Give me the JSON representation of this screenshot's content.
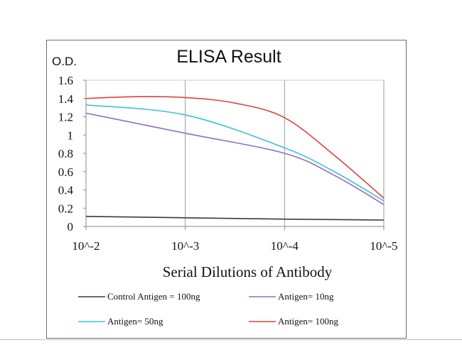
{
  "chart_data": {
    "type": "line",
    "title": "ELISA Result",
    "ylabel": "O.D.",
    "xlabel": "Serial Dilutions of Antibody",
    "categories": [
      "10^-2",
      "10^-3",
      "10^-4",
      "10^-5"
    ],
    "y_ticks": [
      "0",
      "0.2",
      "0.4",
      "0.6",
      "0.8",
      "1",
      "1.2",
      "1.4",
      "1.6"
    ],
    "ylim": [
      0,
      1.6
    ],
    "grid": "vertical",
    "legend_position": "bottom",
    "series": [
      {
        "name": "Control Antigen = 100ng",
        "color": "#3a3a3a",
        "points": [
          [
            0,
            0.11
          ],
          [
            1,
            0.095
          ],
          [
            2,
            0.08
          ],
          [
            3,
            0.07
          ]
        ]
      },
      {
        "name": "Antigen= 10ng",
        "color": "#8e6fbf",
        "points": [
          [
            0,
            1.24
          ],
          [
            1,
            1.02
          ],
          [
            2,
            0.8
          ],
          [
            2.5,
            0.56
          ],
          [
            3,
            0.24
          ]
        ]
      },
      {
        "name": "Antigen= 50ng",
        "color": "#3cc2d6",
        "points": [
          [
            0,
            1.33
          ],
          [
            1,
            1.22
          ],
          [
            2,
            0.86
          ],
          [
            2.5,
            0.6
          ],
          [
            3,
            0.28
          ]
        ]
      },
      {
        "name": "Antigen= 100ng",
        "color": "#e04040",
        "points": [
          [
            0,
            1.4
          ],
          [
            0.5,
            1.42
          ],
          [
            1,
            1.41
          ],
          [
            1.5,
            1.35
          ],
          [
            2,
            1.19
          ],
          [
            2.5,
            0.78
          ],
          [
            3,
            0.31
          ]
        ]
      }
    ]
  }
}
